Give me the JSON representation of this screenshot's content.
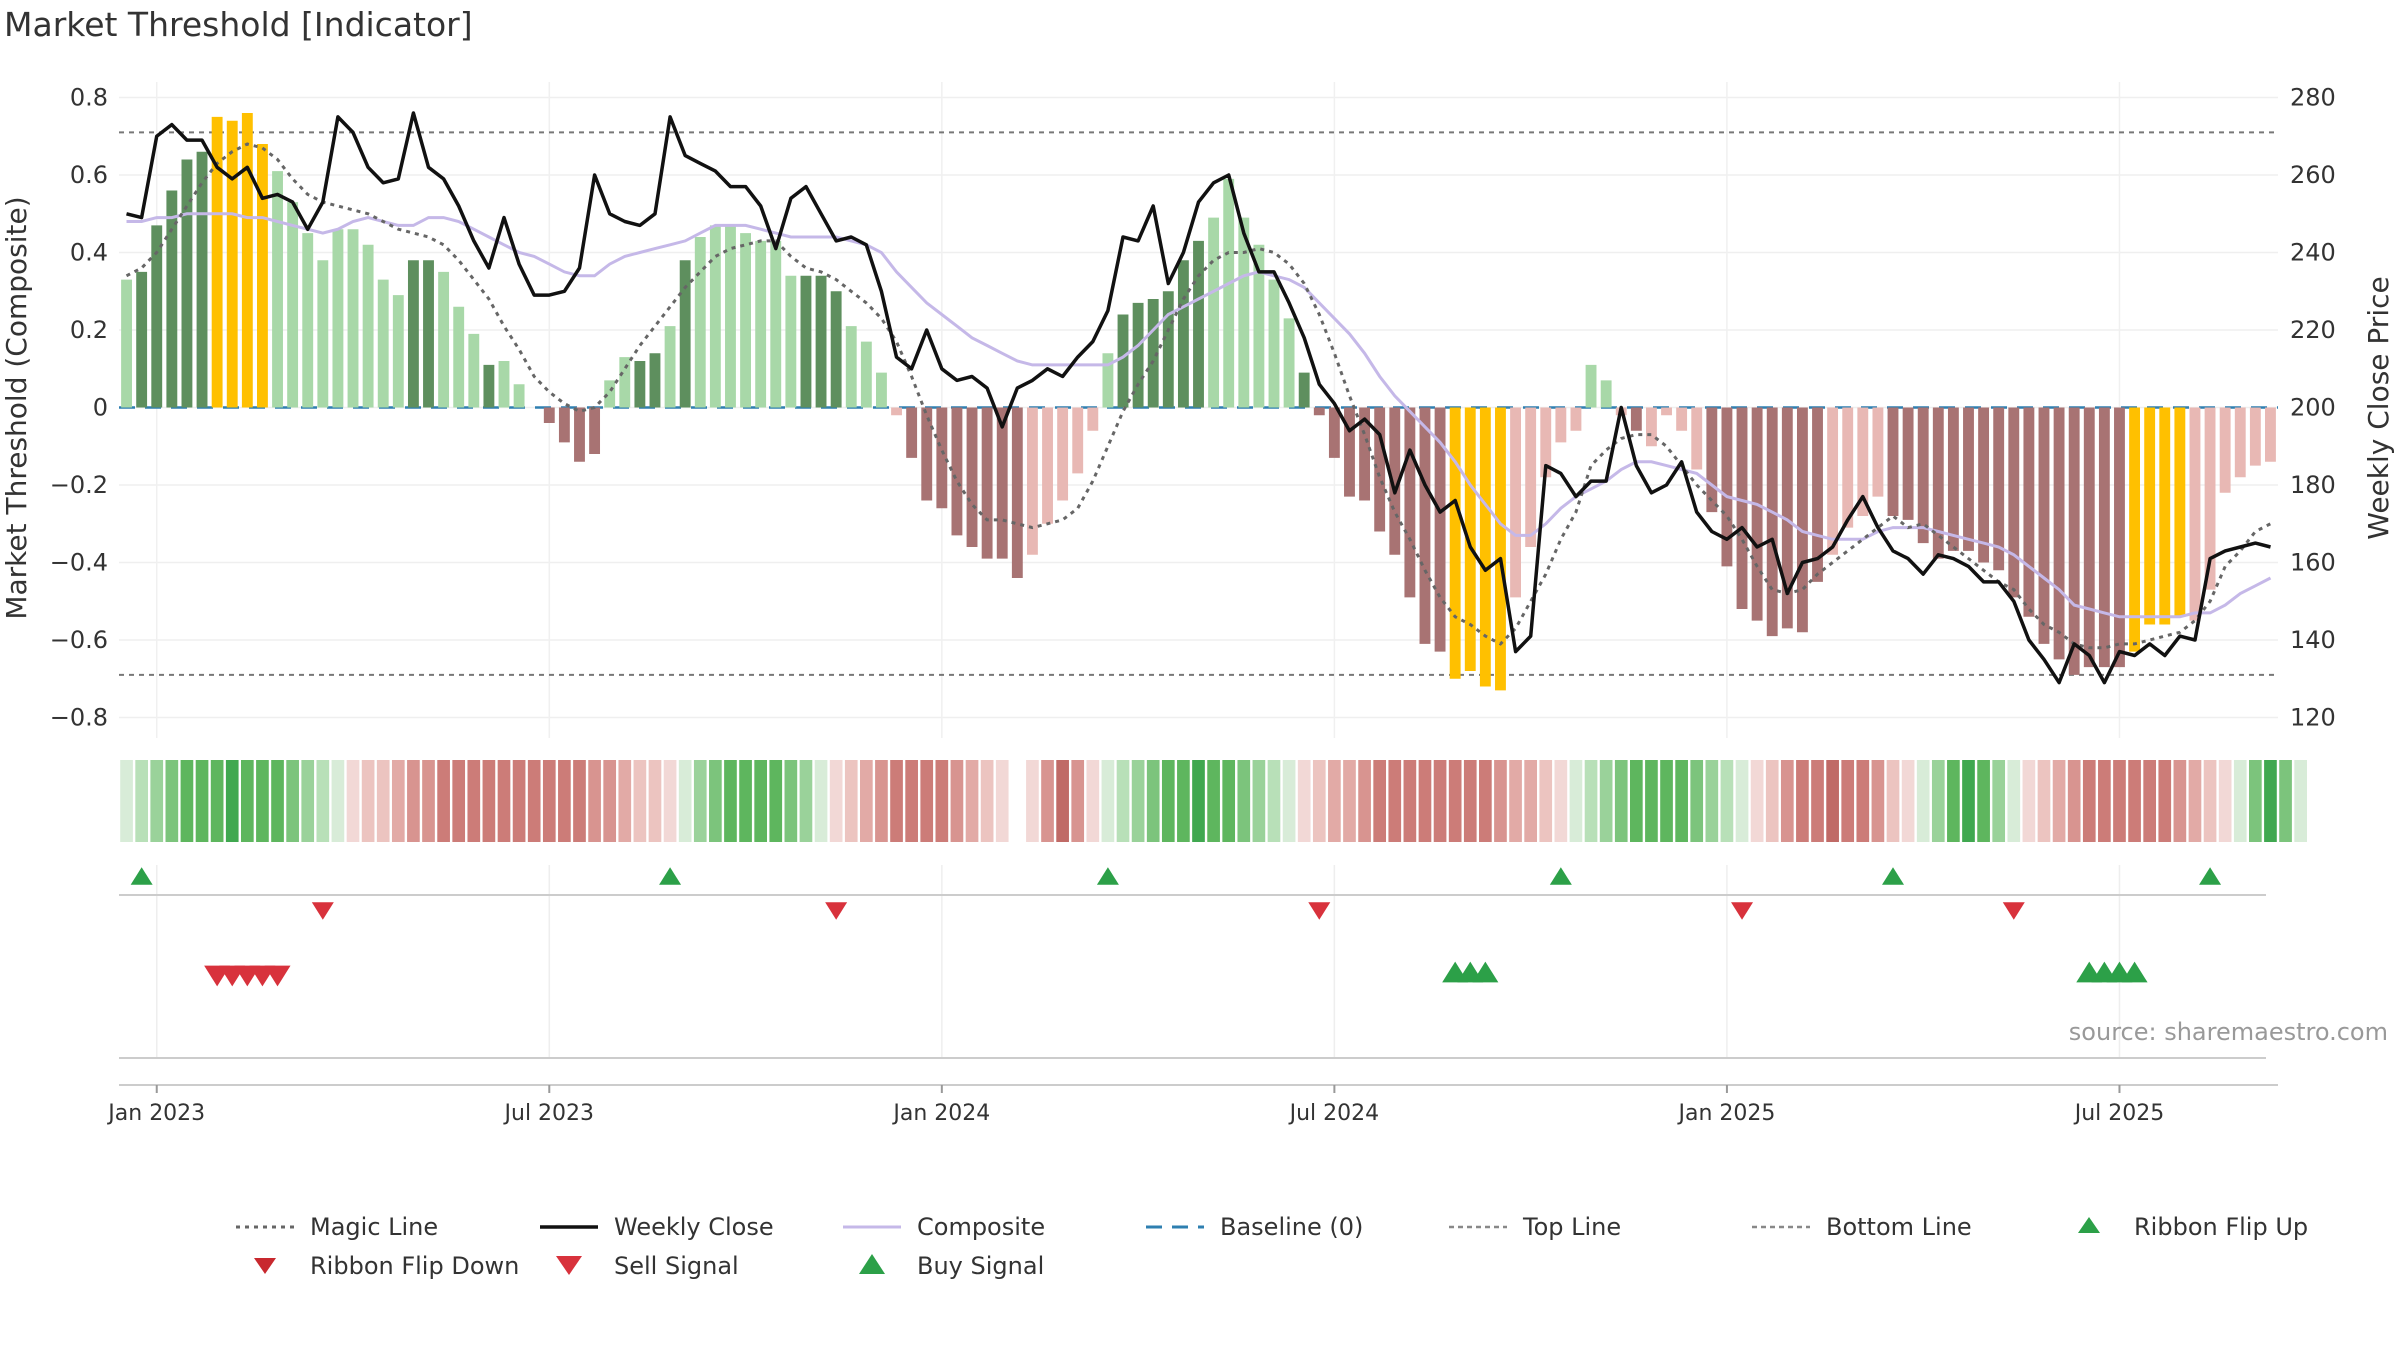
{
  "title": "Market Threshold [Indicator]",
  "source": "source: sharemaestro.com",
  "colors": {
    "dark_green": "#5e8f5e",
    "mid_green": "#6fb06f",
    "light_green": "#a8d8a8",
    "dark_red": "#a87373",
    "light_red": "#e8b8b4",
    "gold": "#ffc000",
    "composite": "#c5b8e8",
    "baseline": "#2e7fb0",
    "buy": "#2ca048",
    "sell": "#d8323c"
  },
  "legend": [
    {
      "label": "Magic Line",
      "icon": "dotted-line"
    },
    {
      "label": "Weekly Close",
      "icon": "solid-line"
    },
    {
      "label": "Composite",
      "icon": "lavender-line"
    },
    {
      "label": "Baseline (0)",
      "icon": "dashed-line"
    },
    {
      "label": "Top Line",
      "icon": "dotted-line-light"
    },
    {
      "label": "Bottom Line",
      "icon": "dotted-line-light"
    },
    {
      "label": "Ribbon Flip Up",
      "icon": "triangle-up"
    },
    {
      "label": "Ribbon Flip Down",
      "icon": "triangle-down"
    },
    {
      "label": "Sell Signal",
      "icon": "triangle-down-red"
    },
    {
      "label": "Buy Signal",
      "icon": "triangle-up-green"
    }
  ],
  "chart_data": {
    "type": "bar",
    "x_ticks": [
      "Jan 2023",
      "Jul 2023",
      "Jan 2024",
      "Jul 2024",
      "Jan 2025",
      "Jul 2025"
    ],
    "x_tick_weeks": [
      2,
      28,
      54,
      80,
      106,
      132
    ],
    "ylabel": "Market Threshold (Composite)",
    "ylabel_right": "Weekly Close Price",
    "ylim": [
      -0.84,
      0.84
    ],
    "ylim_right": [
      116,
      284
    ],
    "yticks_left": [
      "0.8",
      "0.6",
      "0.4",
      "0.2",
      "0",
      "−0.2",
      "−0.4",
      "−0.6",
      "−0.8"
    ],
    "yticks_left_values": [
      0.8,
      0.6,
      0.4,
      0.2,
      0,
      -0.2,
      -0.4,
      -0.6,
      -0.8
    ],
    "yticks_right": [
      "280",
      "260",
      "240",
      "220",
      "200",
      "180",
      "160",
      "140",
      "120"
    ],
    "yticks_right_values": [
      280,
      260,
      240,
      220,
      200,
      180,
      160,
      140,
      120
    ],
    "top_line": 0.71,
    "bottom_line": -0.69,
    "baseline": 0,
    "bars": [
      0.33,
      0.35,
      0.47,
      0.56,
      0.64,
      0.66,
      0.75,
      0.74,
      0.76,
      0.68,
      0.61,
      0.53,
      0.45,
      0.38,
      0.46,
      0.46,
      0.42,
      0.33,
      0.29,
      0.38,
      0.38,
      0.35,
      0.26,
      0.19,
      0.11,
      0.12,
      0.06,
      0,
      -0.04,
      -0.09,
      -0.14,
      -0.12,
      0.07,
      0.13,
      0.12,
      0.14,
      0.21,
      0.38,
      0.44,
      0.47,
      0.47,
      0.45,
      0.43,
      0.43,
      0.34,
      0.34,
      0.34,
      0.3,
      0.21,
      0.17,
      0.09,
      -0.02,
      -0.13,
      -0.24,
      -0.26,
      -0.33,
      -0.36,
      -0.39,
      -0.39,
      -0.44,
      -0.38,
      -0.3,
      -0.24,
      -0.17,
      -0.06,
      0.14,
      0.24,
      0.27,
      0.28,
      0.3,
      0.38,
      0.43,
      0.49,
      0.59,
      0.49,
      0.42,
      0.33,
      0.23,
      0.09,
      -0.02,
      -0.13,
      -0.23,
      -0.24,
      -0.32,
      -0.38,
      -0.49,
      -0.61,
      -0.63,
      -0.7,
      -0.68,
      -0.72,
      -0.73,
      -0.49,
      -0.36,
      -0.18,
      -0.09,
      -0.06,
      0.11,
      0.07,
      -0.02,
      -0.06,
      -0.1,
      -0.02,
      -0.06,
      -0.16,
      -0.27,
      -0.41,
      -0.52,
      -0.55,
      -0.59,
      -0.57,
      -0.58,
      -0.45,
      -0.38,
      -0.31,
      -0.28,
      -0.23,
      -0.28,
      -0.29,
      -0.35,
      -0.39,
      -0.37,
      -0.37,
      -0.4,
      -0.42,
      -0.49,
      -0.54,
      -0.61,
      -0.65,
      -0.69,
      -0.67,
      -0.67,
      -0.67,
      -0.63,
      -0.56,
      -0.56,
      -0.54,
      -0.55,
      -0.47,
      -0.22,
      -0.18,
      -0.15,
      -0.14
    ],
    "bar_kinds": "LDDDDDGGGGLLLLLLLLLDDLLLDLLLDDDDLLDDLDLLLLLLLDDDLLLLDDDDDDDDLLLLLLDDDDDDLLLLLLDDDDDDDDDDGGGGLLLLLLLLDLLLLDDDDDDDDLLLLDDDDDDDDDDDDDDDDGGGGLLLLLLLLLL",
    "composite": [
      0.48,
      0.48,
      0.49,
      0.49,
      0.5,
      0.5,
      0.5,
      0.5,
      0.49,
      0.49,
      0.48,
      0.47,
      0.46,
      0.45,
      0.46,
      0.48,
      0.49,
      0.48,
      0.47,
      0.47,
      0.49,
      0.49,
      0.48,
      0.46,
      0.44,
      0.42,
      0.4,
      0.39,
      0.37,
      0.35,
      0.34,
      0.34,
      0.37,
      0.39,
      0.4,
      0.41,
      0.42,
      0.43,
      0.45,
      0.47,
      0.47,
      0.47,
      0.46,
      0.45,
      0.44,
      0.44,
      0.44,
      0.44,
      0.43,
      0.42,
      0.4,
      0.35,
      0.31,
      0.27,
      0.24,
      0.21,
      0.18,
      0.16,
      0.14,
      0.12,
      0.11,
      0.11,
      0.11,
      0.11,
      0.11,
      0.11,
      0.13,
      0.16,
      0.2,
      0.24,
      0.26,
      0.28,
      0.3,
      0.32,
      0.34,
      0.35,
      0.34,
      0.33,
      0.31,
      0.27,
      0.23,
      0.19,
      0.14,
      0.08,
      0.03,
      -0.01,
      -0.05,
      -0.09,
      -0.14,
      -0.2,
      -0.25,
      -0.3,
      -0.33,
      -0.33,
      -0.3,
      -0.26,
      -0.23,
      -0.21,
      -0.19,
      -0.16,
      -0.14,
      -0.14,
      -0.15,
      -0.16,
      -0.17,
      -0.2,
      -0.23,
      -0.24,
      -0.25,
      -0.27,
      -0.29,
      -0.32,
      -0.33,
      -0.34,
      -0.34,
      -0.34,
      -0.32,
      -0.31,
      -0.31,
      -0.31,
      -0.32,
      -0.33,
      -0.34,
      -0.35,
      -0.36,
      -0.38,
      -0.41,
      -0.44,
      -0.47,
      -0.51,
      -0.52,
      -0.53,
      -0.54,
      -0.54,
      -0.54,
      -0.54,
      -0.54,
      -0.53,
      -0.53,
      -0.51,
      -0.48,
      -0.46,
      -0.44
    ],
    "magic_line": [
      0.34,
      0.36,
      0.4,
      0.46,
      0.52,
      0.58,
      0.63,
      0.66,
      0.68,
      0.67,
      0.64,
      0.59,
      0.55,
      0.53,
      0.52,
      0.51,
      0.5,
      0.48,
      0.46,
      0.45,
      0.44,
      0.42,
      0.38,
      0.33,
      0.28,
      0.21,
      0.15,
      0.08,
      0.04,
      0.01,
      -0.01,
      0.0,
      0.04,
      0.1,
      0.16,
      0.21,
      0.26,
      0.31,
      0.35,
      0.39,
      0.41,
      0.42,
      0.43,
      0.43,
      0.39,
      0.36,
      0.35,
      0.33,
      0.3,
      0.27,
      0.23,
      0.17,
      0.08,
      -0.02,
      -0.11,
      -0.19,
      -0.25,
      -0.29,
      -0.29,
      -0.3,
      -0.31,
      -0.3,
      -0.29,
      -0.26,
      -0.19,
      -0.1,
      -0.01,
      0.06,
      0.12,
      0.2,
      0.28,
      0.34,
      0.38,
      0.4,
      0.4,
      0.41,
      0.4,
      0.37,
      0.32,
      0.24,
      0.14,
      0.03,
      -0.07,
      -0.18,
      -0.27,
      -0.34,
      -0.42,
      -0.49,
      -0.54,
      -0.56,
      -0.59,
      -0.61,
      -0.57,
      -0.5,
      -0.43,
      -0.34,
      -0.27,
      -0.15,
      -0.11,
      -0.08,
      -0.07,
      -0.07,
      -0.1,
      -0.15,
      -0.2,
      -0.24,
      -0.28,
      -0.34,
      -0.41,
      -0.47,
      -0.48,
      -0.47,
      -0.43,
      -0.4,
      -0.37,
      -0.34,
      -0.31,
      -0.28,
      -0.31,
      -0.3,
      -0.33,
      -0.36,
      -0.39,
      -0.42,
      -0.45,
      -0.47,
      -0.52,
      -0.56,
      -0.58,
      -0.61,
      -0.62,
      -0.62,
      -0.61,
      -0.61,
      -0.6,
      -0.59,
      -0.58,
      -0.55,
      -0.5,
      -0.41,
      -0.37,
      -0.32,
      -0.3
    ],
    "weekly_close": [
      250,
      249,
      270,
      273,
      269,
      269,
      262,
      259,
      262,
      254,
      255,
      253,
      246,
      253,
      275,
      271,
      262,
      258,
      259,
      276,
      262,
      259,
      252,
      243,
      236,
      249,
      237,
      229,
      229,
      230,
      236,
      260,
      250,
      248,
      247,
      250,
      275,
      265,
      263,
      261,
      257,
      257,
      252,
      241,
      254,
      257,
      250,
      243,
      244,
      242,
      230,
      213,
      210,
      220,
      210,
      207,
      208,
      205,
      195,
      205,
      207,
      210,
      208,
      213,
      217,
      225,
      244,
      243,
      252,
      232,
      240,
      253,
      258,
      260,
      245,
      235,
      235,
      227,
      218,
      206,
      201,
      194,
      197,
      193,
      178,
      189,
      180,
      173,
      176,
      164,
      158,
      161,
      137,
      141,
      185,
      183,
      177,
      181,
      181,
      200,
      185,
      178,
      180,
      186,
      173,
      168,
      166,
      169,
      164,
      166,
      152,
      160,
      161,
      164,
      171,
      177,
      169,
      163,
      161,
      157,
      162,
      161,
      159,
      155,
      155,
      150,
      140,
      135,
      129,
      139,
      136,
      129,
      137,
      136,
      139,
      136,
      141,
      140,
      161,
      163,
      164,
      165,
      164
    ],
    "ribbon": [
      "L",
      "G",
      "G",
      "G",
      "G",
      "G",
      "G",
      "G",
      "G",
      "G",
      "G",
      "G",
      "G",
      "G",
      "LG",
      "R",
      "R",
      "R",
      "R",
      "R",
      "R",
      "R",
      "R",
      "R",
      "R",
      "R",
      "R",
      "R",
      "R",
      "R",
      "R",
      "R",
      "R",
      "R",
      "R",
      "R",
      "R",
      "G",
      "G",
      "G",
      "G",
      "G",
      "G",
      "G",
      "G",
      "G",
      "G",
      "R",
      "R",
      "R",
      "R",
      "R",
      "R",
      "R",
      "R",
      "R",
      "R",
      "R",
      "R",
      "",
      "R",
      "R",
      "R",
      "R",
      "R",
      "G",
      "G",
      "G",
      "G",
      "G",
      "G",
      "G",
      "G",
      "G",
      "G",
      "G",
      "G",
      "G",
      "R",
      "R",
      "R",
      "R",
      "R",
      "R",
      "R",
      "R",
      "R",
      "R",
      "R",
      "R",
      "R",
      "R",
      "R",
      "R",
      "R",
      "R",
      "G",
      "G",
      "G",
      "G",
      "G",
      "G",
      "G",
      "G",
      "G",
      "G",
      "G",
      "G",
      "R",
      "R",
      "R",
      "R",
      "R",
      "R",
      "R",
      "R",
      "R",
      "R",
      "R",
      "G",
      "G",
      "G",
      "G",
      "G",
      "G",
      "G",
      "R",
      "R",
      "R",
      "R",
      "R",
      "R",
      "R",
      "R",
      "R",
      "R",
      "R",
      "R",
      "R",
      "R",
      "G",
      "G",
      "G",
      "G",
      "G"
    ],
    "ribbon_flip_up": [
      1,
      36,
      65,
      95,
      117,
      138
    ],
    "ribbon_flip_down": [
      13,
      47,
      79,
      107,
      125
    ],
    "sell_signal": [
      6,
      7,
      8,
      9,
      10
    ],
    "buy_signal": [
      88,
      89,
      90,
      130,
      131,
      132,
      133
    ]
  }
}
